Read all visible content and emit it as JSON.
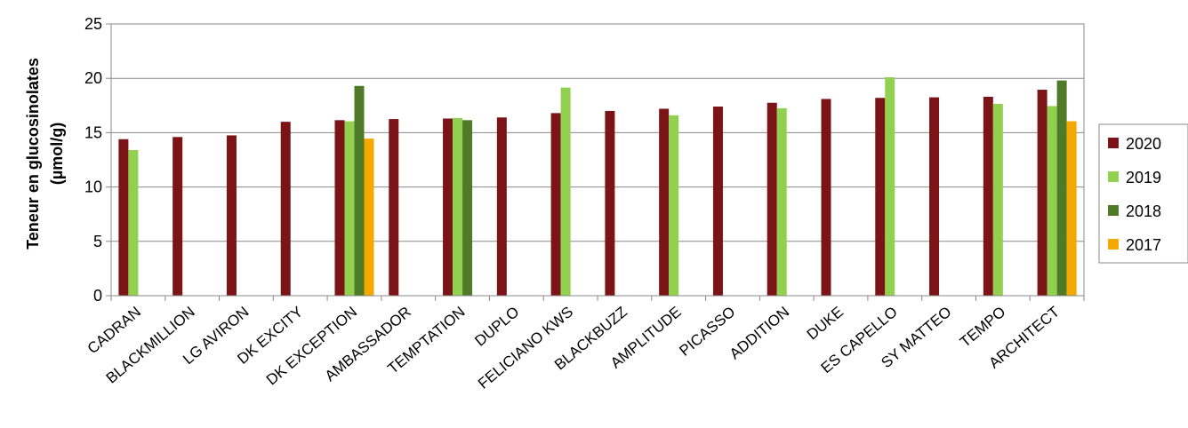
{
  "chart_data": {
    "type": "bar",
    "title": "",
    "xlabel": "",
    "ylabel_lines": [
      "Teneur en glucosinolates",
      "(µmol/g)"
    ],
    "ylim": [
      0,
      25
    ],
    "yticks": [
      0,
      5,
      10,
      15,
      20,
      25
    ],
    "grid": true,
    "legend_position": "right",
    "categories": [
      "CADRAN",
      "BLACKMILLION",
      "LG AVIRON",
      "DK EXCITY",
      "DK EXCEPTION",
      "AMBASSADOR",
      "TEMPTATION",
      "DUPLO",
      "FELICIANO KWS",
      "BLACKBUZZ",
      "AMPLITUDE",
      "PICASSO",
      "ADDITION",
      "DUKE",
      "ES CAPELLO",
      "SY MATTEO",
      "TEMPO",
      "ARCHITECT"
    ],
    "series": [
      {
        "name": "2020",
        "color": "#7b1416",
        "values": [
          14.4,
          14.6,
          14.75,
          16.0,
          16.15,
          16.25,
          16.3,
          16.4,
          16.8,
          17.0,
          17.2,
          17.4,
          17.75,
          18.1,
          18.2,
          18.25,
          18.3,
          18.95
        ]
      },
      {
        "name": "2019",
        "color": "#92d050",
        "values": [
          13.4,
          null,
          null,
          null,
          16.05,
          null,
          16.35,
          null,
          19.15,
          null,
          16.6,
          null,
          17.25,
          null,
          20.1,
          null,
          17.65,
          17.45
        ]
      },
      {
        "name": "2018",
        "color": "#4f7a28",
        "values": [
          null,
          null,
          null,
          null,
          19.3,
          null,
          16.15,
          null,
          null,
          null,
          null,
          null,
          null,
          null,
          null,
          null,
          null,
          19.8
        ]
      },
      {
        "name": "2017",
        "color": "#f5a800",
        "values": [
          null,
          null,
          null,
          null,
          14.45,
          null,
          null,
          null,
          null,
          null,
          null,
          null,
          null,
          null,
          null,
          null,
          null,
          16.05
        ]
      }
    ]
  }
}
